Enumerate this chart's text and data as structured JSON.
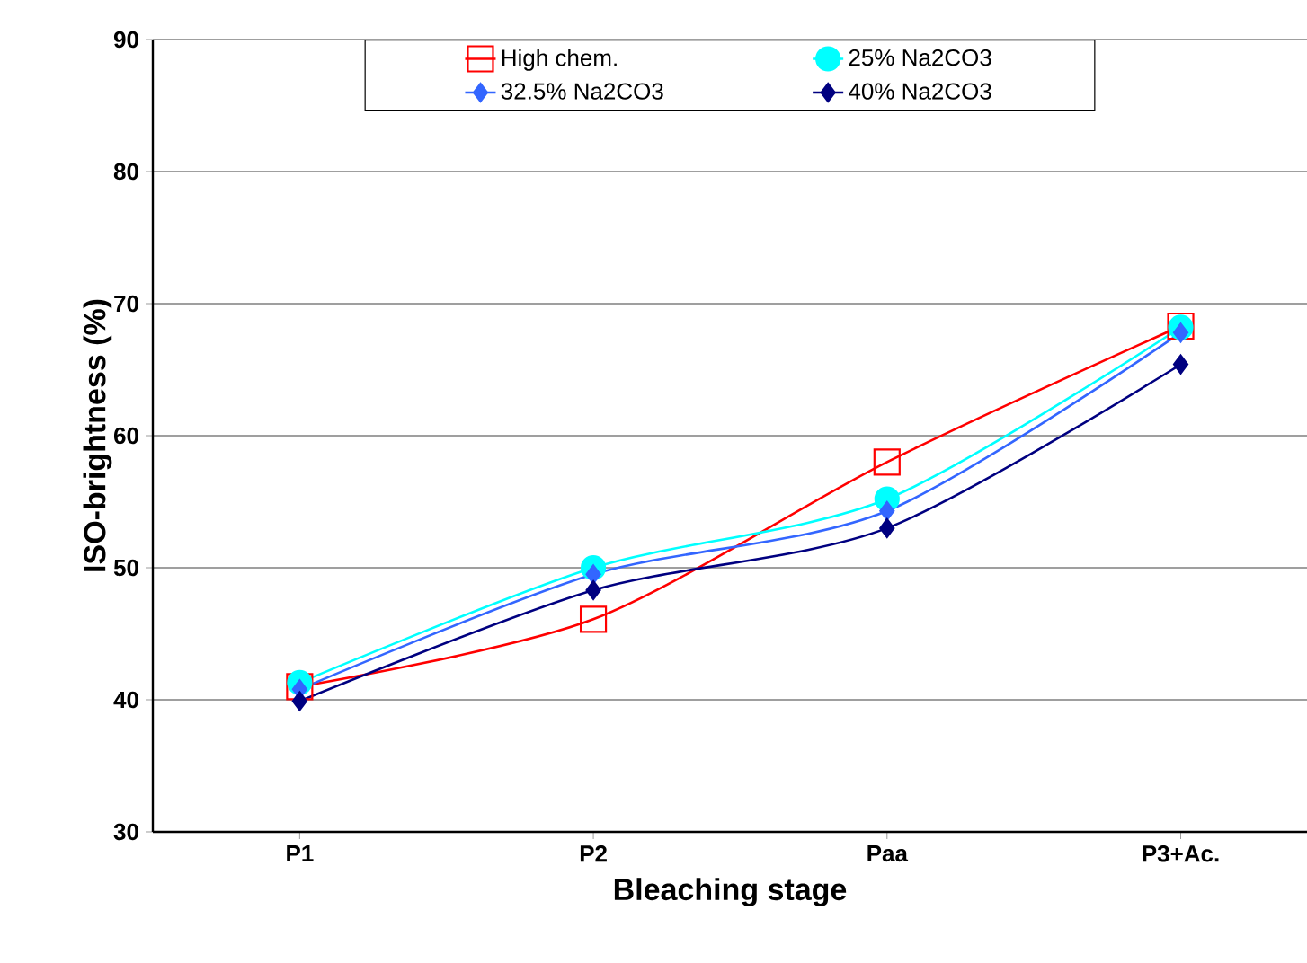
{
  "chart_data": {
    "type": "line",
    "xlabel": "Bleaching stage",
    "ylabel": "ISO-brightness (%)",
    "categories": [
      "P1",
      "P2",
      "Paa",
      "P3+Ac."
    ],
    "series": [
      {
        "name": "High chem.",
        "color": "#ff0000",
        "marker": "square",
        "values": [
          41.0,
          46.1,
          58.0,
          68.3
        ]
      },
      {
        "name": "25% Na2CO3",
        "color": "#00ffff",
        "marker": "circle",
        "values": [
          41.3,
          50.0,
          55.2,
          68.2
        ]
      },
      {
        "name": "32.5% Na2CO3",
        "color": "#3366ff",
        "marker": "diamond",
        "values": [
          40.8,
          49.5,
          54.3,
          67.8
        ]
      },
      {
        "name": "40% Na2CO3",
        "color": "#000080",
        "marker": "diamond",
        "values": [
          39.9,
          48.3,
          53.0,
          65.4
        ]
      }
    ],
    "ylim": [
      30,
      90
    ],
    "yticks": [
      30,
      40,
      50,
      60,
      70,
      80,
      90
    ],
    "grid": "y",
    "legend": "top",
    "line_style": "solid"
  }
}
